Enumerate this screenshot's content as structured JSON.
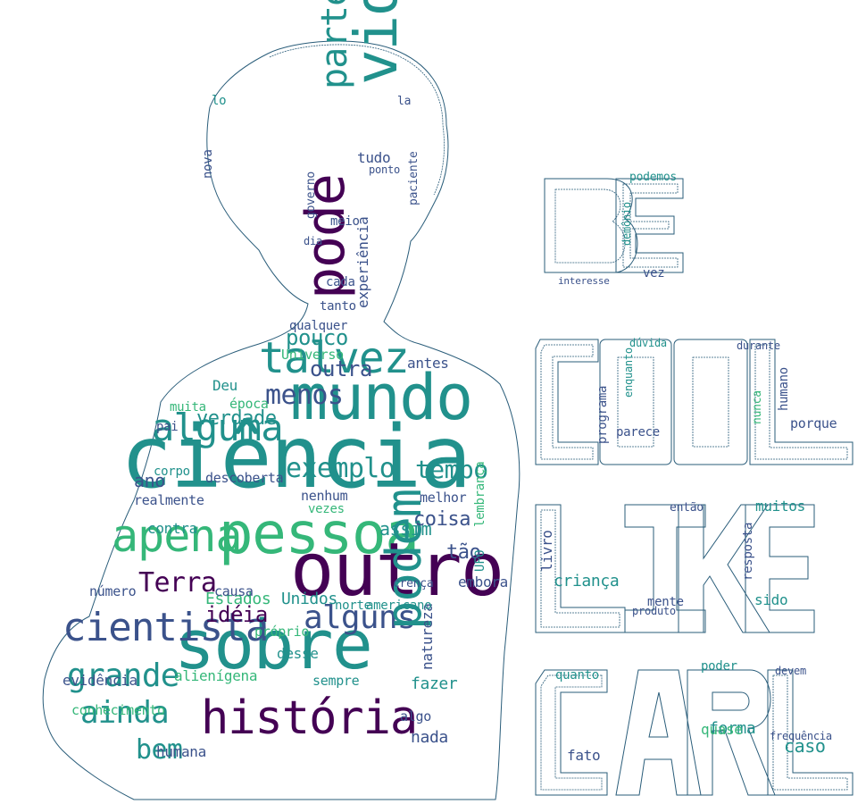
{
  "colors": {
    "purple": "#440154",
    "indigo": "#3b528b",
    "teal": "#21918c",
    "green": "#35b779",
    "lime": "#9cd64a",
    "yellow": "#fde725",
    "outline": "#2a5d7a"
  },
  "panel_text": {
    "line1": "BE",
    "line2": "COOL",
    "line3": "LIKE",
    "line4": "CARL"
  },
  "words": [
    {
      "text": "ciência",
      "c": "teal",
      "r": 0
    },
    {
      "text": "pessoa",
      "c": "green",
      "r": 0
    },
    {
      "text": "outro",
      "c": "purple",
      "r": 0
    },
    {
      "text": "sobre",
      "c": "teal",
      "r": 0
    },
    {
      "text": "mundo",
      "c": "teal",
      "r": 0
    },
    {
      "text": "história",
      "c": "purple",
      "r": 0
    },
    {
      "text": "alguma",
      "c": "teal",
      "r": 0
    },
    {
      "text": "cientista",
      "c": "indigo",
      "r": 0
    },
    {
      "text": "talvez",
      "c": "teal",
      "r": 0
    },
    {
      "text": "apena",
      "c": "green",
      "r": 0
    },
    {
      "text": "grande",
      "c": "teal",
      "r": 0
    },
    {
      "text": "alguns",
      "c": "indigo",
      "r": 0
    },
    {
      "text": "ainda",
      "c": "teal",
      "r": 0
    },
    {
      "text": "exemplo",
      "c": "teal",
      "r": 0
    },
    {
      "text": "vida",
      "c": "teal",
      "r": -90
    },
    {
      "text": "pode",
      "c": "purple",
      "r": -90
    },
    {
      "text": "podem",
      "c": "teal",
      "r": -90
    },
    {
      "text": "parte",
      "c": "teal",
      "r": -90
    },
    {
      "text": "tempo",
      "c": "teal",
      "r": 0
    },
    {
      "text": "Terra",
      "c": "purple",
      "r": 0
    },
    {
      "text": "menos",
      "c": "indigo",
      "r": 0
    },
    {
      "text": "pouco",
      "c": "teal",
      "r": 0
    },
    {
      "text": "verdade",
      "c": "teal",
      "r": 0
    },
    {
      "text": "bem",
      "c": "teal",
      "r": 0
    },
    {
      "text": "outra",
      "c": "indigo",
      "r": 0
    },
    {
      "text": "idéia",
      "c": "purple",
      "r": 0
    },
    {
      "text": "Estados",
      "c": "green",
      "r": 0
    },
    {
      "text": "Unidos",
      "c": "teal",
      "r": 0
    },
    {
      "text": "coisa",
      "c": "indigo",
      "r": 0
    },
    {
      "text": "tão",
      "c": "indigo",
      "r": 0
    },
    {
      "text": "ano",
      "c": "indigo",
      "r": 0
    },
    {
      "text": "assim",
      "c": "teal",
      "r": 0
    },
    {
      "text": "nada",
      "c": "indigo",
      "r": 0
    },
    {
      "text": "fazer",
      "c": "teal",
      "r": 0
    },
    {
      "text": "desse",
      "c": "teal",
      "r": 0
    },
    {
      "text": "humana",
      "c": "indigo",
      "r": 0
    },
    {
      "text": "evidência",
      "c": "indigo",
      "r": 0
    },
    {
      "text": "conhecimento",
      "c": "green",
      "r": 0
    },
    {
      "text": "alienígena",
      "c": "green",
      "r": 0
    },
    {
      "text": "descoberta",
      "c": "indigo",
      "r": 0
    },
    {
      "text": "contra",
      "c": "teal",
      "r": 0
    },
    {
      "text": "embora",
      "c": "indigo",
      "r": 0
    },
    {
      "text": "natureza",
      "c": "indigo",
      "r": -90
    },
    {
      "text": "experiência",
      "c": "indigo",
      "r": -90
    },
    {
      "text": "antes",
      "c": "indigo",
      "r": 0
    },
    {
      "text": "muita",
      "c": "green",
      "r": 0
    },
    {
      "text": "época",
      "c": "green",
      "r": 0
    },
    {
      "text": "Universo",
      "c": "green",
      "r": 0
    },
    {
      "text": "realmente",
      "c": "indigo",
      "r": 0
    },
    {
      "text": "nenhum",
      "c": "indigo",
      "r": 0
    },
    {
      "text": "melhor",
      "c": "indigo",
      "r": 0
    },
    {
      "text": "americano",
      "c": "teal",
      "r": 0
    },
    {
      "text": "norte",
      "c": "teal",
      "r": 0
    },
    {
      "text": "sempre",
      "c": "teal",
      "r": 0
    },
    {
      "text": "próprio",
      "c": "green",
      "r": 0
    },
    {
      "text": "número",
      "c": "indigo",
      "r": 0
    },
    {
      "text": "causa",
      "c": "indigo",
      "r": 0
    },
    {
      "text": "algo",
      "c": "indigo",
      "r": 0
    },
    {
      "text": "caso",
      "c": "teal",
      "r": 0
    },
    {
      "text": "forma",
      "c": "teal",
      "r": 0
    },
    {
      "text": "quase",
      "c": "green",
      "r": 0
    },
    {
      "text": "fato",
      "c": "indigo",
      "r": 0
    },
    {
      "text": "quanto",
      "c": "teal",
      "r": 0
    },
    {
      "text": "poder",
      "c": "teal",
      "r": 0
    },
    {
      "text": "muitos",
      "c": "teal",
      "r": 0
    },
    {
      "text": "criança",
      "c": "teal",
      "r": 0
    },
    {
      "text": "livro",
      "c": "indigo",
      "r": -90
    },
    {
      "text": "sido",
      "c": "teal",
      "r": 0
    },
    {
      "text": "mente",
      "c": "indigo",
      "r": 0
    },
    {
      "text": "então",
      "c": "indigo",
      "r": 0
    },
    {
      "text": "resposta",
      "c": "indigo",
      "r": -90
    },
    {
      "text": "porque",
      "c": "indigo",
      "r": 0
    },
    {
      "text": "parece",
      "c": "indigo",
      "r": 0
    },
    {
      "text": "programa",
      "c": "indigo",
      "r": -90
    },
    {
      "text": "humano",
      "c": "indigo",
      "r": -90
    },
    {
      "text": "vez",
      "c": "indigo",
      "r": 0
    },
    {
      "text": "podemos",
      "c": "teal",
      "r": 0
    },
    {
      "text": "demônio",
      "c": "teal",
      "r": -90
    },
    {
      "text": "tudo",
      "c": "indigo",
      "r": 0
    },
    {
      "text": "meio",
      "c": "indigo",
      "r": 0
    },
    {
      "text": "cada",
      "c": "indigo",
      "r": 0
    },
    {
      "text": "tanto",
      "c": "indigo",
      "r": 0
    },
    {
      "text": "qualquer",
      "c": "indigo",
      "r": 0
    },
    {
      "text": "nova",
      "c": "indigo",
      "r": -90
    },
    {
      "text": "lo",
      "c": "teal",
      "r": 0
    },
    {
      "text": "Deu",
      "c": "teal",
      "r": 0
    },
    {
      "text": "vezes",
      "c": "green",
      "r": 0
    },
    {
      "text": "corpo",
      "c": "teal",
      "r": 0
    },
    {
      "text": "pai",
      "c": "indigo",
      "r": 0
    },
    {
      "text": "governo",
      "c": "indigo",
      "r": -90
    },
    {
      "text": "la",
      "c": "indigo",
      "r": 0
    },
    {
      "text": "ponto",
      "c": "indigo",
      "r": 0
    },
    {
      "text": "dia",
      "c": "indigo",
      "r": 0
    },
    {
      "text": "paciente",
      "c": "indigo",
      "r": -90
    },
    {
      "text": "UFO",
      "c": "teal",
      "r": -90
    },
    {
      "text": "lembrança",
      "c": "green",
      "r": -90
    },
    {
      "text": "crença",
      "c": "indigo",
      "r": 0
    },
    {
      "text": "dúvida",
      "c": "teal",
      "r": 0
    },
    {
      "text": "durante",
      "c": "indigo",
      "r": 0
    },
    {
      "text": "enquanto",
      "c": "teal",
      "r": -90
    },
    {
      "text": "nunca",
      "c": "green",
      "r": -90
    },
    {
      "text": "devem",
      "c": "indigo",
      "r": 0
    },
    {
      "text": "produto",
      "c": "indigo",
      "r": 0
    },
    {
      "text": "frequência",
      "c": "indigo",
      "r": 0
    },
    {
      "text": "interesse",
      "c": "indigo",
      "r": 0
    }
  ]
}
